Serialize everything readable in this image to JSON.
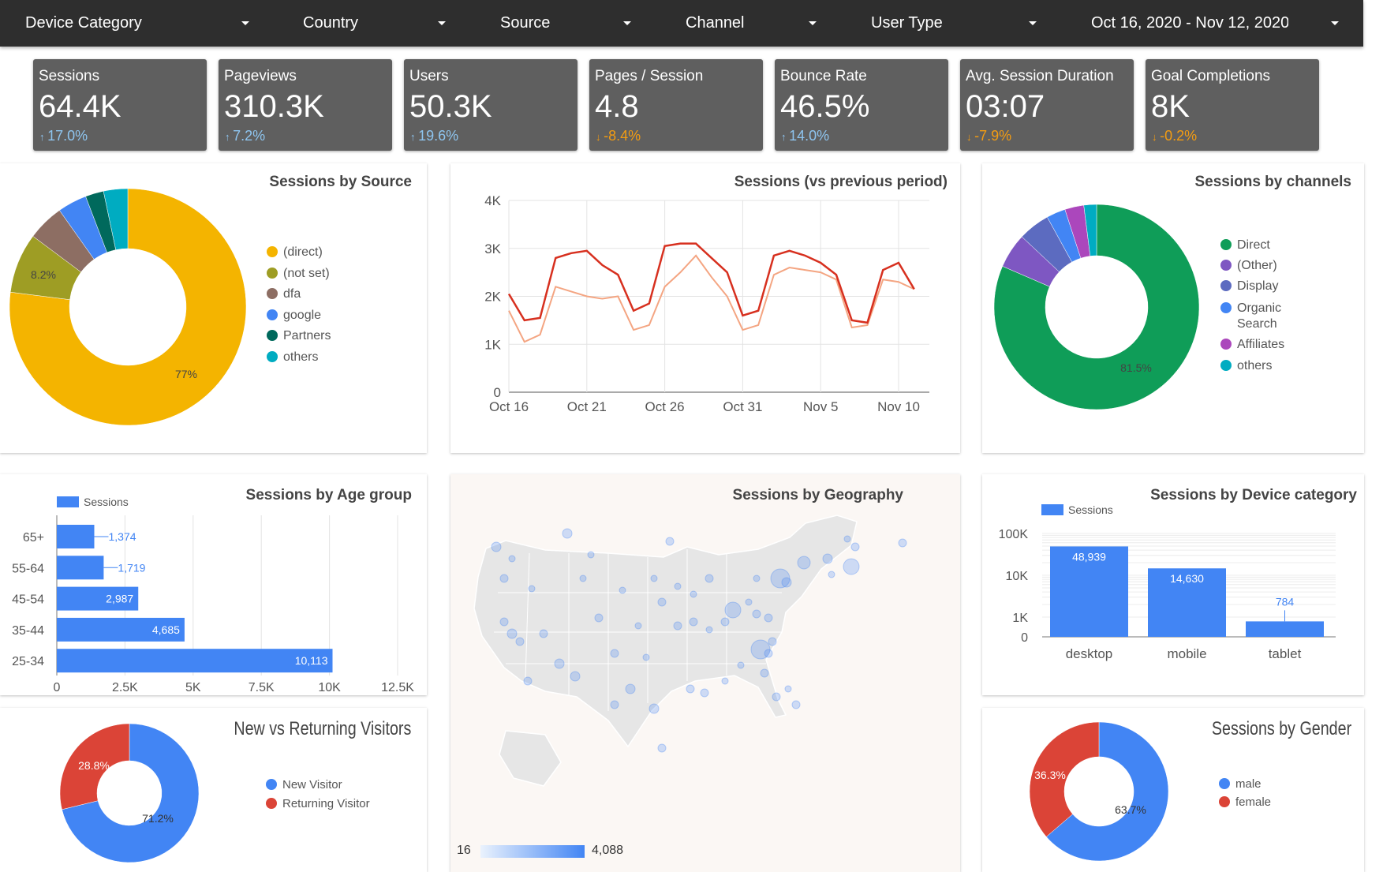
{
  "filters": [
    {
      "label": "Device Category"
    },
    {
      "label": "Country"
    },
    {
      "label": "Source"
    },
    {
      "label": "Channel"
    },
    {
      "label": "User Type"
    },
    {
      "label": "Oct 16, 2020 - Nov 12, 2020"
    }
  ],
  "kpis": [
    {
      "title": "Sessions",
      "value": "64.4K",
      "delta": "17.0%",
      "direction": "up"
    },
    {
      "title": "Pageviews",
      "value": "310.3K",
      "delta": "7.2%",
      "direction": "up"
    },
    {
      "title": "Users",
      "value": "50.3K",
      "delta": "19.6%",
      "direction": "up"
    },
    {
      "title": "Pages / Session",
      "value": "4.8",
      "delta": "-8.4%",
      "direction": "down"
    },
    {
      "title": "Bounce Rate",
      "value": "46.5%",
      "delta": "14.0%",
      "direction": "up"
    },
    {
      "title": "Avg. Session Duration",
      "value": "03:07",
      "delta": "-7.9%",
      "direction": "down"
    },
    {
      "title": "Goal Completions",
      "value": "8K",
      "delta": "-0.2%",
      "direction": "down"
    }
  ],
  "colors": {
    "up": "#8ec5f0",
    "down": "#f39c12",
    "primary": "#4285f4",
    "prev_line": "#f4a582",
    "curr_line": "#d7301f"
  },
  "panels": {
    "source": {
      "title": "Sessions by Source"
    },
    "trend": {
      "title": "Sessions (vs previous period)"
    },
    "channels": {
      "title": "Sessions by channels"
    },
    "age": {
      "title": "Sessions by Age group",
      "legend": "Sessions"
    },
    "geo": {
      "title": "Sessions by Geography",
      "scale_min": "16",
      "scale_max": "4,088"
    },
    "device": {
      "title": "Sessions by Device category",
      "legend": "Sessions"
    },
    "visitors": {
      "title": "New vs Returning Visitors"
    },
    "gender": {
      "title": "Sessions by Gender"
    }
  },
  "chart_data": [
    {
      "id": "source",
      "type": "pie",
      "title": "Sessions by Source",
      "slices": [
        {
          "label": "(direct)",
          "value": 77,
          "color": "#f4b400",
          "pct_label": "77%"
        },
        {
          "label": "(not set)",
          "value": 8.2,
          "color": "#9e9d24",
          "pct_label": "8.2%"
        },
        {
          "label": "dfa",
          "value": 5,
          "color": "#8d6e63",
          "pct_label": ""
        },
        {
          "label": "google",
          "value": 4,
          "color": "#4285f4",
          "pct_label": ""
        },
        {
          "label": "Partners",
          "value": 2.5,
          "color": "#00695c",
          "pct_label": ""
        },
        {
          "label": "others",
          "value": 3.3,
          "color": "#00acc1",
          "pct_label": ""
        }
      ]
    },
    {
      "id": "trend",
      "type": "line",
      "title": "Sessions (vs previous period)",
      "x_ticks": [
        "Oct 16",
        "Oct 21",
        "Oct 26",
        "Oct 31",
        "Nov 5",
        "Nov 10"
      ],
      "y_ticks": [
        "0",
        "1K",
        "2K",
        "3K",
        "4K"
      ],
      "ylim": [
        0,
        4000
      ],
      "series": [
        {
          "role": "current",
          "color": "#d7301f",
          "values": [
            2050,
            1500,
            1550,
            2800,
            2900,
            2950,
            2650,
            2450,
            1700,
            1850,
            3050,
            3100,
            3100,
            2800,
            2500,
            1600,
            1700,
            2850,
            2950,
            2850,
            2700,
            2450,
            1500,
            1450,
            2550,
            2700,
            2150
          ]
        },
        {
          "role": "previous",
          "color": "#f4a582",
          "values": [
            1700,
            1050,
            1200,
            2200,
            2100,
            2000,
            1950,
            2000,
            1300,
            1400,
            2200,
            2500,
            2850,
            2400,
            2000,
            1300,
            1400,
            2450,
            2600,
            2550,
            2500,
            2350,
            1350,
            1400,
            2350,
            2300,
            2150
          ]
        }
      ]
    },
    {
      "id": "channels",
      "type": "pie",
      "title": "Sessions by channels",
      "slices": [
        {
          "label": "Direct",
          "value": 81.5,
          "color": "#0f9d58",
          "pct_label": "81.5%"
        },
        {
          "label": "(Other)",
          "value": 5.5,
          "color": "#7e57c2",
          "pct_label": ""
        },
        {
          "label": "Display",
          "value": 5,
          "color": "#5c6bc0",
          "pct_label": ""
        },
        {
          "label": "Organic Search",
          "value": 3,
          "color": "#4285f4",
          "pct_label": ""
        },
        {
          "label": "Affiliates",
          "value": 3,
          "color": "#ab47bc",
          "pct_label": ""
        },
        {
          "label": "others",
          "value": 2,
          "color": "#00acc1",
          "pct_label": ""
        }
      ]
    },
    {
      "id": "age",
      "type": "bar",
      "orientation": "horizontal",
      "title": "Sessions by Age group",
      "categories": [
        "65+",
        "55-64",
        "45-54",
        "35-44",
        "25-34"
      ],
      "values": [
        1374,
        1719,
        2987,
        4685,
        10113
      ],
      "value_labels": [
        "1,374",
        "1,719",
        "2,987",
        "4,685",
        "10,113"
      ],
      "x_ticks": [
        "0",
        "2.5K",
        "5K",
        "7.5K",
        "10K",
        "12.5K"
      ],
      "xlim": [
        0,
        12500
      ],
      "series_name": "Sessions"
    },
    {
      "id": "device",
      "type": "bar",
      "title": "Sessions by Device category",
      "categories": [
        "desktop",
        "mobile",
        "tablet"
      ],
      "values": [
        48939,
        14630,
        784
      ],
      "value_labels": [
        "48,939",
        "14,630",
        "784"
      ],
      "y_ticks": [
        "0",
        "1K",
        "10K",
        "100K"
      ],
      "y_scale": "log",
      "series_name": "Sessions"
    },
    {
      "id": "visitors",
      "type": "pie",
      "title": "New vs Returning Visitors",
      "slices": [
        {
          "label": "New Visitor",
          "value": 71.2,
          "color": "#4285f4",
          "pct_label": "71.2%"
        },
        {
          "label": "Returning Visitor",
          "value": 28.8,
          "color": "#db4437",
          "pct_label": "28.8%"
        }
      ]
    },
    {
      "id": "gender",
      "type": "pie",
      "title": "Sessions by Gender",
      "slices": [
        {
          "label": "male",
          "value": 63.7,
          "color": "#4285f4",
          "pct_label": "63.7%"
        },
        {
          "label": "female",
          "value": 36.3,
          "color": "#db4437",
          "pct_label": "36.3%"
        }
      ]
    }
  ]
}
